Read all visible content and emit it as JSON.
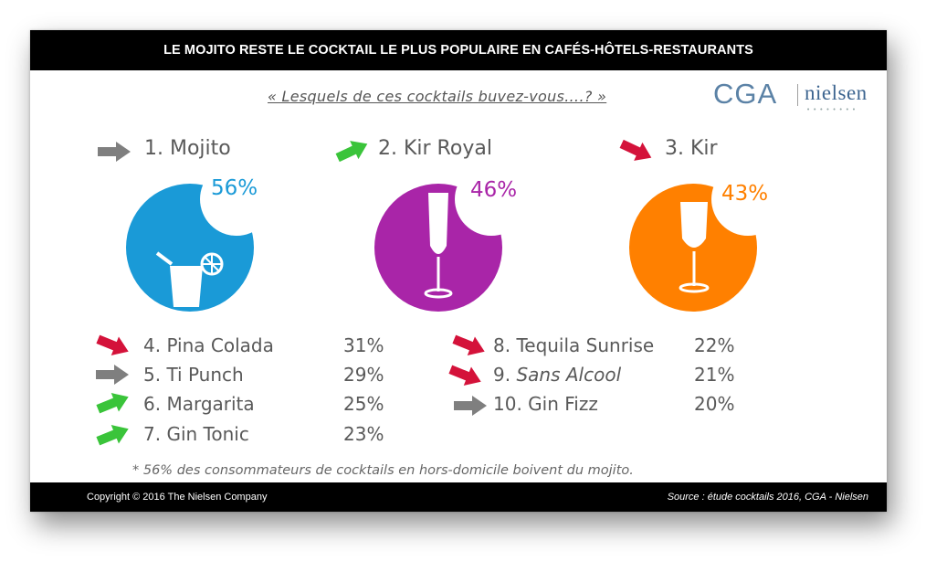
{
  "header": {
    "title": "LE MOJITO RESTE LE COCKTAIL LE PLUS POPULAIRE EN CAFÉS-HÔTELS-RESTAURANTS"
  },
  "question": "« Lesquels de ces cocktails buvez-vous….? »",
  "logo": {
    "cga": "CGA",
    "nielsen": "nielsen"
  },
  "top3": [
    {
      "label": "1. Mojito",
      "pct": "56%",
      "color": "#1a9ad7",
      "trend": "stable",
      "icon": "mojito-glass-icon"
    },
    {
      "label": "2. Kir Royal",
      "pct": "46%",
      "color": "#a925a8",
      "trend": "up",
      "icon": "champagne-flute-icon"
    },
    {
      "label": "3. Kir",
      "pct": "43%",
      "color": "#ff8000",
      "trend": "down",
      "icon": "wine-glass-icon"
    }
  ],
  "rankings_left": [
    {
      "label": "4. Pina Colada",
      "pct": "31%",
      "trend": "down"
    },
    {
      "label": "5. Ti Punch",
      "pct": "29%",
      "trend": "stable"
    },
    {
      "label": "6. Margarita",
      "pct": "25%",
      "trend": "up"
    },
    {
      "label": "7. Gin Tonic",
      "pct": "23%",
      "trend": "up"
    }
  ],
  "rankings_right": [
    {
      "label": "8. Tequila Sunrise",
      "pct": "22%",
      "trend": "down"
    },
    {
      "label_prefix": "9. ",
      "label_italic": "Sans Alcool",
      "pct": "21%",
      "trend": "down"
    },
    {
      "label": "10. Gin Fizz",
      "pct": "20%",
      "trend": "stable"
    }
  ],
  "trend_colors": {
    "up": "#3ac43a",
    "down": "#d4123a",
    "stable": "#7f7f7f"
  },
  "footnote": "* 56% des consommateurs de cocktails en hors-domicile boivent du mojito.",
  "footer": {
    "copyright": "Copyright © 2016 The Nielsen Company",
    "source": "Source : étude cocktails 2016,  CGA - Nielsen"
  }
}
